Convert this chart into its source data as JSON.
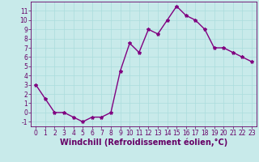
{
  "x": [
    0,
    1,
    2,
    3,
    4,
    5,
    6,
    7,
    8,
    9,
    10,
    11,
    12,
    13,
    14,
    15,
    16,
    17,
    18,
    19,
    20,
    21,
    22,
    23
  ],
  "y": [
    3.0,
    1.5,
    0.0,
    0.0,
    -0.5,
    -1.0,
    -0.5,
    -0.5,
    0.0,
    4.5,
    7.5,
    6.5,
    9.0,
    8.5,
    10.0,
    11.5,
    10.5,
    10.0,
    9.0,
    7.0,
    7.0,
    6.5,
    6.0,
    5.5
  ],
  "line_color": "#800080",
  "marker": "*",
  "marker_size": 3,
  "xlabel": "Windchill (Refroidissement éolien,°C)",
  "xlabel_fontsize": 7,
  "xlim": [
    -0.5,
    23.5
  ],
  "ylim": [
    -1.5,
    12
  ],
  "yticks": [
    -1,
    0,
    1,
    2,
    3,
    4,
    5,
    6,
    7,
    8,
    9,
    10,
    11
  ],
  "xticks": [
    0,
    1,
    2,
    3,
    4,
    5,
    6,
    7,
    8,
    9,
    10,
    11,
    12,
    13,
    14,
    15,
    16,
    17,
    18,
    19,
    20,
    21,
    22,
    23
  ],
  "grid_color": "#aadddd",
  "background_color": "#c8eaea",
  "tick_fontsize": 5.5,
  "line_width": 1.0,
  "text_color": "#660066"
}
